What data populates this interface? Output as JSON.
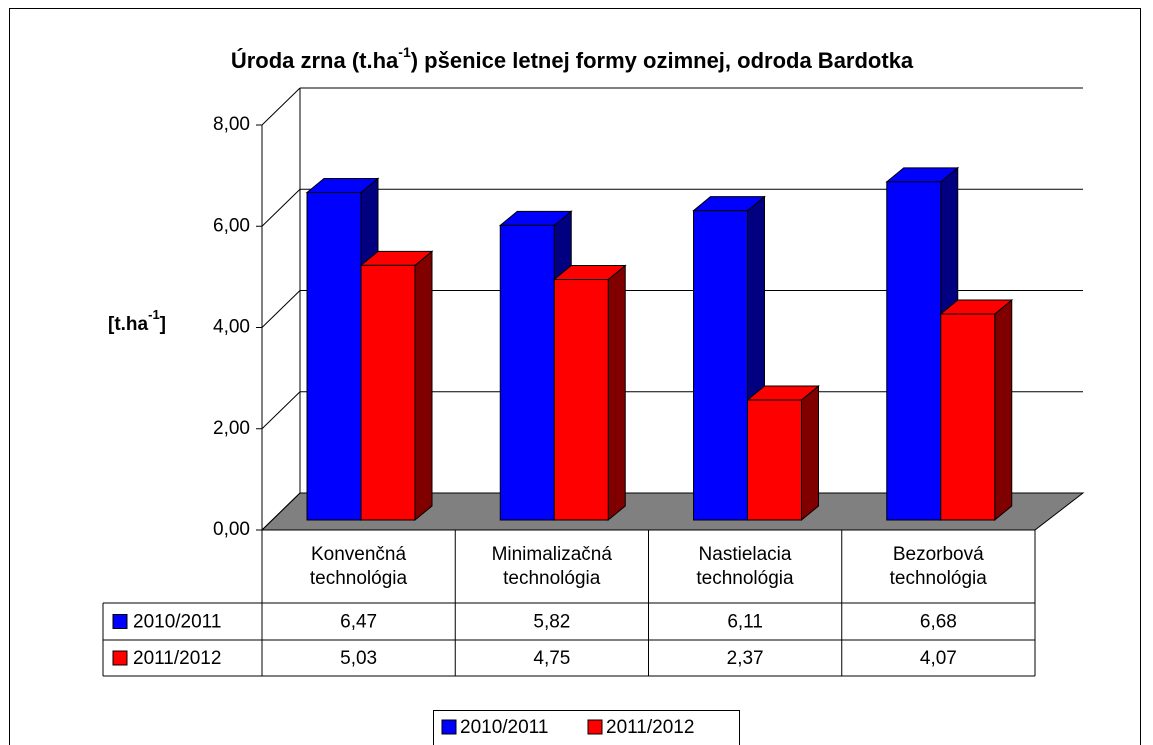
{
  "chart_data": {
    "type": "bar3d",
    "title": [
      "Úroda zrna (t.ha",
      "-1",
      ") pšenice letnej formy ozimnej, odroda Bardotka"
    ],
    "y_label": [
      "[t.ha",
      "-1",
      "]"
    ],
    "categories": [
      "Konvenčná technológia",
      "Minimalizačná technológia",
      "Nastielacia technológia",
      "Bezorbová technológia"
    ],
    "series": [
      {
        "name": "2010/2011",
        "color": "#0000ff",
        "side_color": "#000080",
        "values": [
          6.47,
          5.82,
          6.11,
          6.68
        ],
        "value_labels": [
          "6,47",
          "5,82",
          "6,11",
          "6,68"
        ]
      },
      {
        "name": "2011/2012",
        "color": "#ff0000",
        "side_color": "#800000",
        "values": [
          5.03,
          4.75,
          2.37,
          4.07
        ],
        "value_labels": [
          "5,03",
          "4,75",
          "2,37",
          "4,07"
        ]
      }
    ],
    "ylim": [
      0,
      8
    ],
    "yticks": [
      {
        "value": 0,
        "label": "0,00"
      },
      {
        "value": 2,
        "label": "2,00"
      },
      {
        "value": 4,
        "label": "4,00"
      },
      {
        "value": 6,
        "label": "6,00"
      },
      {
        "value": 8,
        "label": "8,00"
      }
    ],
    "grid": true,
    "floor_color": "#808080",
    "legend": "bottom"
  }
}
